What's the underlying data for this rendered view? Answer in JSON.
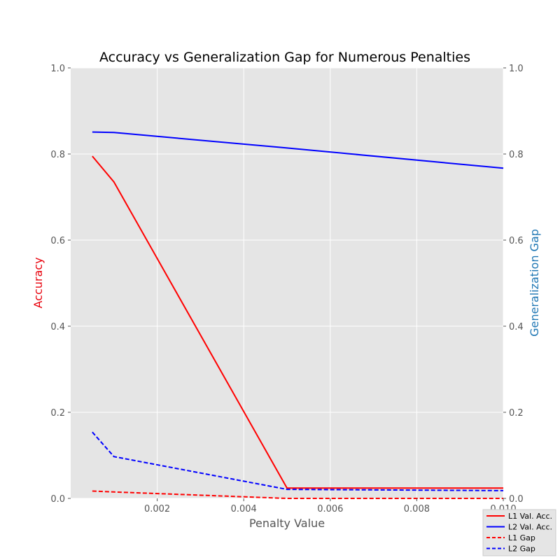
{
  "chart_data": {
    "type": "line",
    "title": "Accuracy vs Generalization Gap for Numerous Penalties",
    "xlabel": "Penalty Value",
    "ylabel_left": "Accuracy",
    "ylabel_right": "Generalization Gap",
    "xlim": [
      0,
      0.01
    ],
    "ylim_left": [
      0,
      1
    ],
    "ylim_right": [
      0,
      1
    ],
    "xticks": [
      "0.002",
      "0.004",
      "0.006",
      "0.008",
      "0.010"
    ],
    "xtick_values": [
      0.002,
      0.004,
      0.006,
      0.008,
      0.01
    ],
    "yticks_left": [
      "0.0",
      "0.2",
      "0.4",
      "0.6",
      "0.8",
      "1.0"
    ],
    "yticks_right": [
      "0.0",
      "0.2",
      "0.4",
      "0.6",
      "0.8",
      "1.0"
    ],
    "ytick_values": [
      0,
      0.2,
      0.4,
      0.6,
      0.8,
      1.0
    ],
    "grid": true,
    "legend_position": "bottom-right, outside plot",
    "series": [
      {
        "name": "L1 Val. Acc.",
        "axis": "left",
        "color": "#ff0000",
        "style": "solid",
        "x": [
          0.0005,
          0.001,
          0.005,
          0.01
        ],
        "y": [
          0.795,
          0.735,
          0.024,
          0.024
        ]
      },
      {
        "name": "L2 Val. Acc.",
        "axis": "left",
        "color": "#0000ff",
        "style": "solid",
        "x": [
          0.0005,
          0.001,
          0.005,
          0.01
        ],
        "y": [
          0.851,
          0.85,
          0.814,
          0.767
        ]
      },
      {
        "name": "L1 Gap",
        "axis": "right",
        "color": "#ff0000",
        "style": "dashed",
        "x": [
          0.0005,
          0.001,
          0.005,
          0.01
        ],
        "y": [
          0.017,
          0.015,
          0.0,
          0.0
        ]
      },
      {
        "name": "L2 Gap",
        "axis": "right",
        "color": "#0000ff",
        "style": "dashed",
        "x": [
          0.0005,
          0.001,
          0.005,
          0.01
        ],
        "y": [
          0.154,
          0.097,
          0.021,
          0.018
        ]
      }
    ],
    "colors": {
      "plot_background": "#e5e5e5",
      "grid": "#ffffff",
      "left_label": "#e8000b",
      "right_label": "#1f77b4",
      "tick": "#555555"
    }
  }
}
